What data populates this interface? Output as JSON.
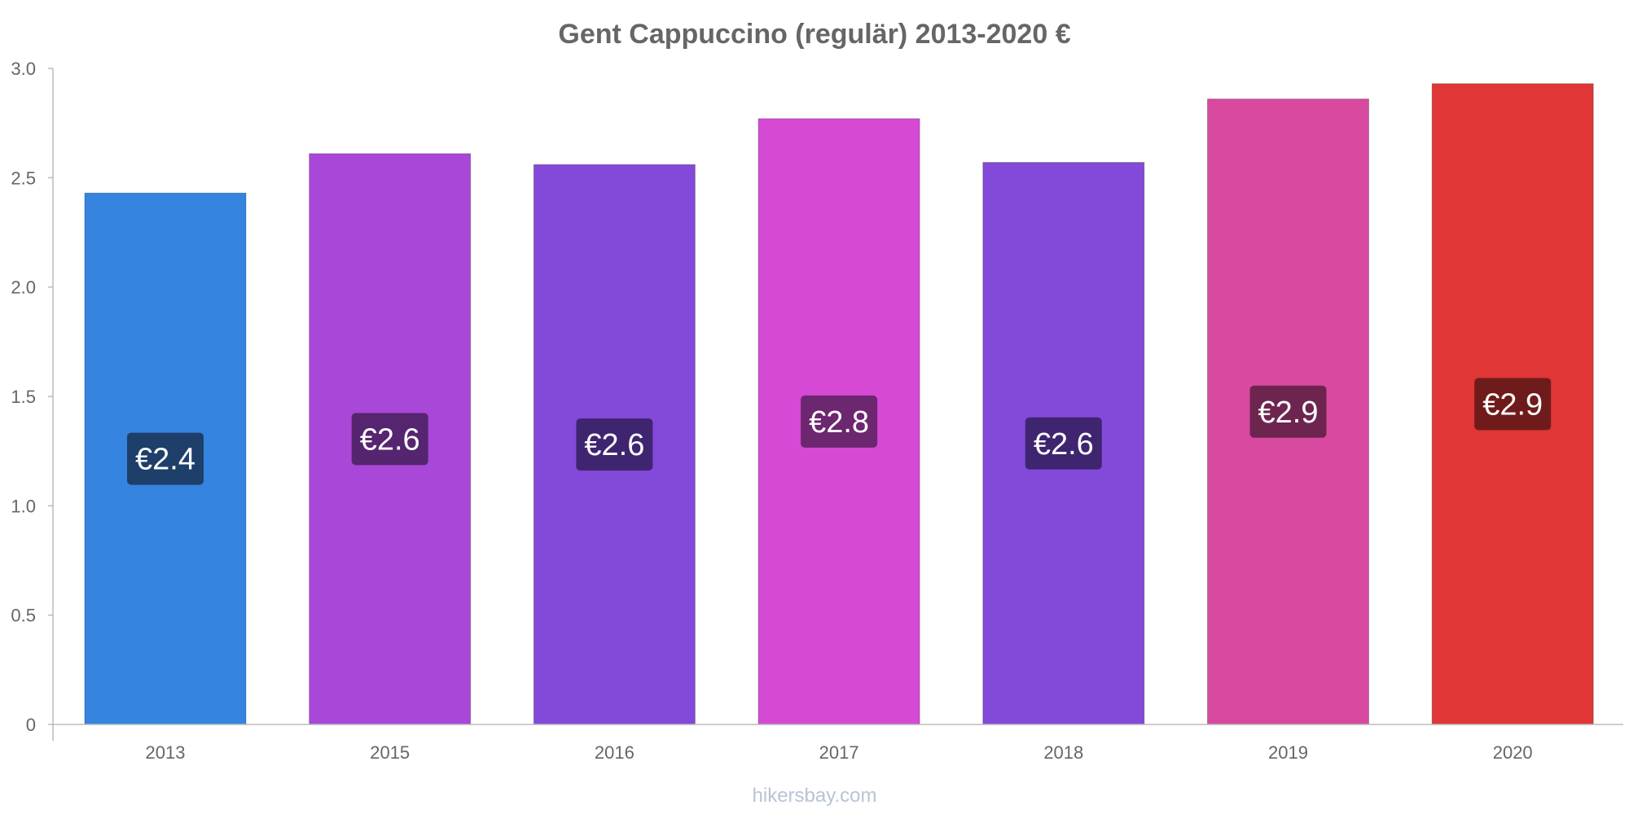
{
  "chart_data": {
    "type": "bar",
    "title": "Gent Cappuccino (regulär) 2013-2020 €",
    "xlabel": "",
    "ylabel": "",
    "categories": [
      "2013",
      "2015",
      "2016",
      "2017",
      "2018",
      "2019",
      "2020"
    ],
    "values": [
      2.43,
      2.61,
      2.56,
      2.77,
      2.57,
      2.86,
      2.93
    ],
    "value_labels": [
      "€2.4",
      "€2.6",
      "€2.6",
      "€2.8",
      "€2.6",
      "€2.9",
      "€2.9"
    ],
    "ylim": [
      0,
      3.0
    ],
    "yticks": [
      0,
      0.5,
      1.0,
      1.5,
      2.0,
      2.5,
      3.0
    ],
    "ytick_labels": [
      "0",
      "0.5",
      "1.0",
      "1.5",
      "2.0",
      "2.5",
      "3.0"
    ],
    "grid": false,
    "legend": "none",
    "bar_colors": [
      "#3584e0",
      "#a947d8",
      "#8349d9",
      "#d549d5",
      "#8349d9",
      "#d849a0",
      "#e03636"
    ],
    "label_box_colors": [
      "#1d3f6a",
      "#562570",
      "#3f2570",
      "#6d2670",
      "#3f2570",
      "#6d2550",
      "#701b1b"
    ]
  },
  "source": "hikersbay.com"
}
